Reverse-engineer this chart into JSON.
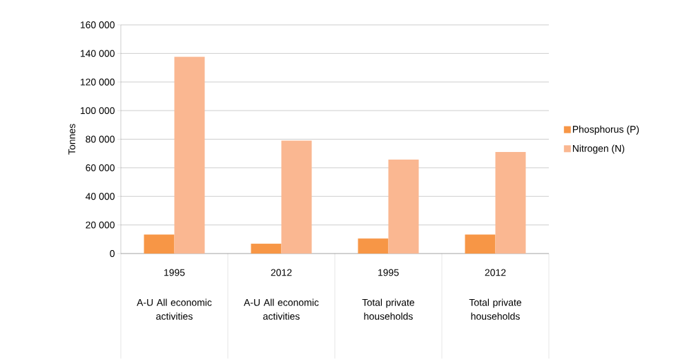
{
  "chart_data": {
    "type": "bar",
    "ylabel": "Tonnes",
    "categories": [
      "1995",
      "2012",
      "1995",
      "2012"
    ],
    "annotations": [
      "A-U All economic activities",
      "A-U All economic activities",
      "Total private households",
      "Total private households"
    ],
    "series": [
      {
        "name": "Phosphorus (P)",
        "color": "#f79646",
        "values": [
          13300,
          6900,
          10500,
          13300
        ]
      },
      {
        "name": "Nitrogen (N)",
        "color": "#fab791",
        "values": [
          137600,
          79000,
          65700,
          71100
        ]
      }
    ],
    "ylim": [
      0,
      160000
    ],
    "yticks": [
      {
        "value": 0,
        "label": "0"
      },
      {
        "value": 20000,
        "label": "20 000"
      },
      {
        "value": 40000,
        "label": "40 000"
      },
      {
        "value": 60000,
        "label": "60 000"
      },
      {
        "value": 80000,
        "label": "80 000"
      },
      {
        "value": 100000,
        "label": "100 000"
      },
      {
        "value": 120000,
        "label": "120 000"
      },
      {
        "value": 140000,
        "label": "140 000"
      },
      {
        "value": 160000,
        "label": "160 000"
      }
    ],
    "grid": "y",
    "legend": "right"
  }
}
